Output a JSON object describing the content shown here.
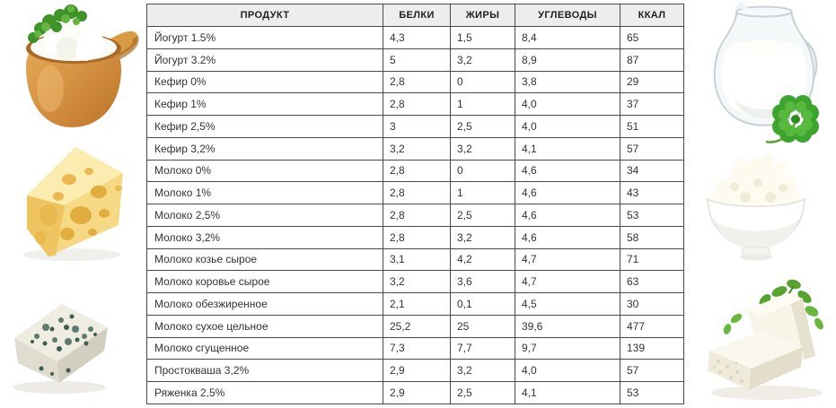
{
  "table": {
    "headers": [
      "ПРОДУКТ",
      "БЕЛКИ",
      "ЖИРЫ",
      "УГЛЕВОДЫ",
      "ККАЛ"
    ],
    "rows": [
      [
        "Йогурт 1.5%",
        "4,3",
        "1,5",
        "8,4",
        "65"
      ],
      [
        "Йогурт 3.2%",
        "5",
        "3,2",
        "8,9",
        "87"
      ],
      [
        "Кефир 0%",
        "2,8",
        "0",
        "3,8",
        "29"
      ],
      [
        "Кефир 1%",
        "2,8",
        "1",
        "4,0",
        "37"
      ],
      [
        "Кефир 2,5%",
        "3",
        "2,5",
        "4,0",
        "51"
      ],
      [
        "Кефир 3,2%",
        "3,2",
        "3,2",
        "4,1",
        "57"
      ],
      [
        "Молоко 0%",
        "2,8",
        "0",
        "4,6",
        "34"
      ],
      [
        "Молоко 1%",
        "2,8",
        "1",
        "4,6",
        "43"
      ],
      [
        "Молоко 2,5%",
        "2,8",
        "2,5",
        "4,6",
        "53"
      ],
      [
        "Молоко 3,2%",
        "2,8",
        "3,2",
        "4,6",
        "58"
      ],
      [
        "Молоко козье сырое",
        "3,1",
        "4,2",
        "4,7",
        "71"
      ],
      [
        "Молоко коровье сырое",
        "3,2",
        "3,6",
        "4,7",
        "63"
      ],
      [
        "Молоко обезжиренное",
        "2,1",
        "0,1",
        "4,5",
        "30"
      ],
      [
        "Молоко сухое цельное",
        "25,2",
        "25",
        "39,6",
        "477"
      ],
      [
        "Молоко сгущенное",
        "7,3",
        "7,7",
        "9,7",
        "139"
      ],
      [
        "Простокваша 3,2%",
        "2,9",
        "3,2",
        "4,0",
        "57"
      ],
      [
        "Ряженка 2,5%",
        "2,9",
        "2,5",
        "4,1",
        "53"
      ]
    ]
  },
  "images": {
    "left": [
      "sour-cream-pot",
      "swiss-cheese",
      "blue-cheese"
    ],
    "right": [
      "milk-jug-with-clover",
      "cottage-cheese-bowl",
      "feta-cheese"
    ]
  },
  "colors": {
    "header_bg": "#ededed",
    "table_border": "#4a4a4a",
    "cell_text": "#333333",
    "pot_tan": "#d9953f",
    "cheese_yellow": "#f6d87f",
    "clover_green": "#3da52e"
  }
}
